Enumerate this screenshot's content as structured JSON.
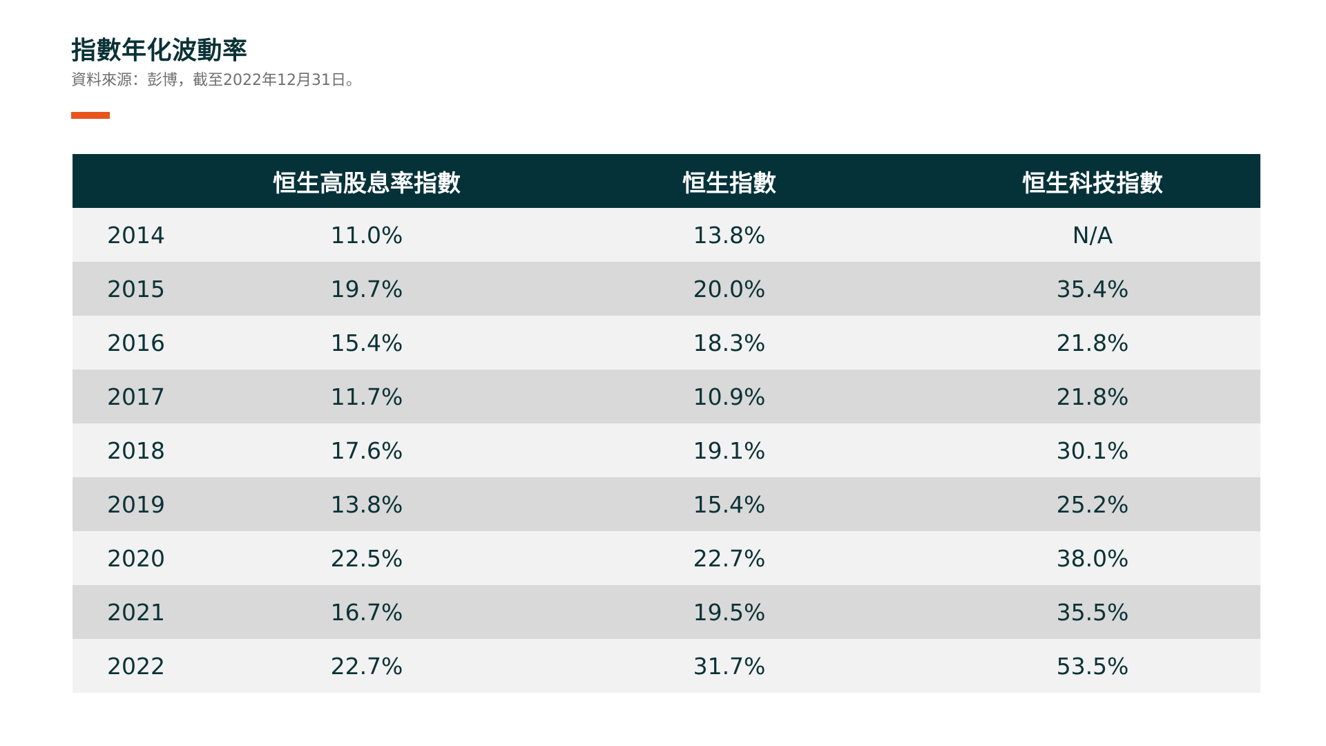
{
  "title": "指數年化波動率",
  "subtitle": "資料來源：彭博，截至2022年12月31日。",
  "colors": {
    "accent": "#e8541b",
    "header_bg": "#053239",
    "row_light": "#f2f2f2",
    "row_dark": "#d9d9d9",
    "text": "#0b3236"
  },
  "chart_data": {
    "type": "table",
    "columns": [
      "",
      "恒生高股息率指數",
      "恒生指數",
      "恒生科技指數"
    ],
    "rows": [
      [
        "2014",
        "11.0%",
        "13.8%",
        "N/A"
      ],
      [
        "2015",
        "19.7%",
        "20.0%",
        "35.4%"
      ],
      [
        "2016",
        "15.4%",
        "18.3%",
        "21.8%"
      ],
      [
        "2017",
        "11.7%",
        "10.9%",
        "21.8%"
      ],
      [
        "2018",
        "17.6%",
        "19.1%",
        "30.1%"
      ],
      [
        "2019",
        "13.8%",
        "15.4%",
        "25.2%"
      ],
      [
        "2020",
        "22.5%",
        "22.7%",
        "38.0%"
      ],
      [
        "2021",
        "16.7%",
        "19.5%",
        "35.5%"
      ],
      [
        "2022",
        "22.7%",
        "31.7%",
        "53.5%"
      ]
    ]
  }
}
